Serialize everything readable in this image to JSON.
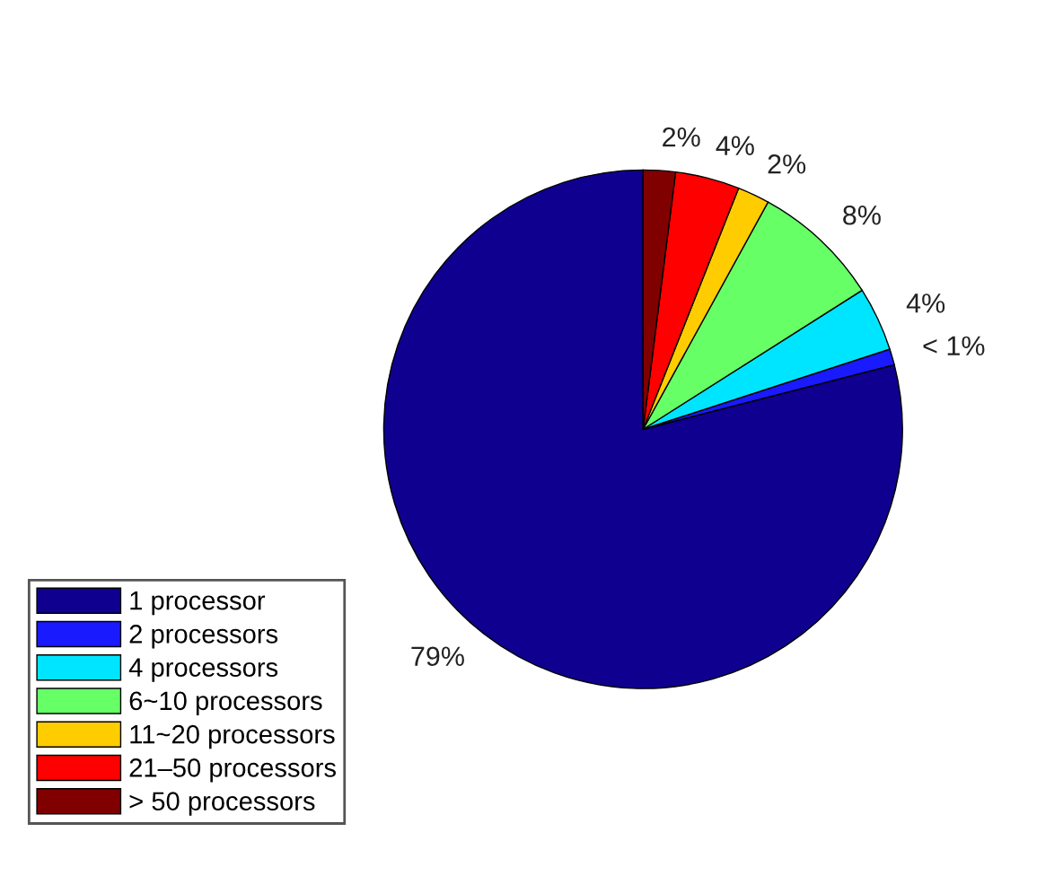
{
  "chart_data": {
    "type": "pie",
    "categories": [
      "1 processor",
      "2 processors",
      "4 processors",
      "6~10 processors",
      "11~20 processors",
      "21–50 processors",
      "> 50 processors"
    ],
    "values": [
      79,
      1,
      4,
      8,
      2,
      4,
      2
    ],
    "value_labels": [
      "79%",
      "< 1%",
      "4%",
      "8%",
      "2%",
      "4%",
      "2%"
    ],
    "colors": [
      "#10008f",
      "#1a1aff",
      "#00e5ff",
      "#66ff66",
      "#ffcc00",
      "#ff0000",
      "#800000"
    ],
    "legend": "bottom left"
  }
}
